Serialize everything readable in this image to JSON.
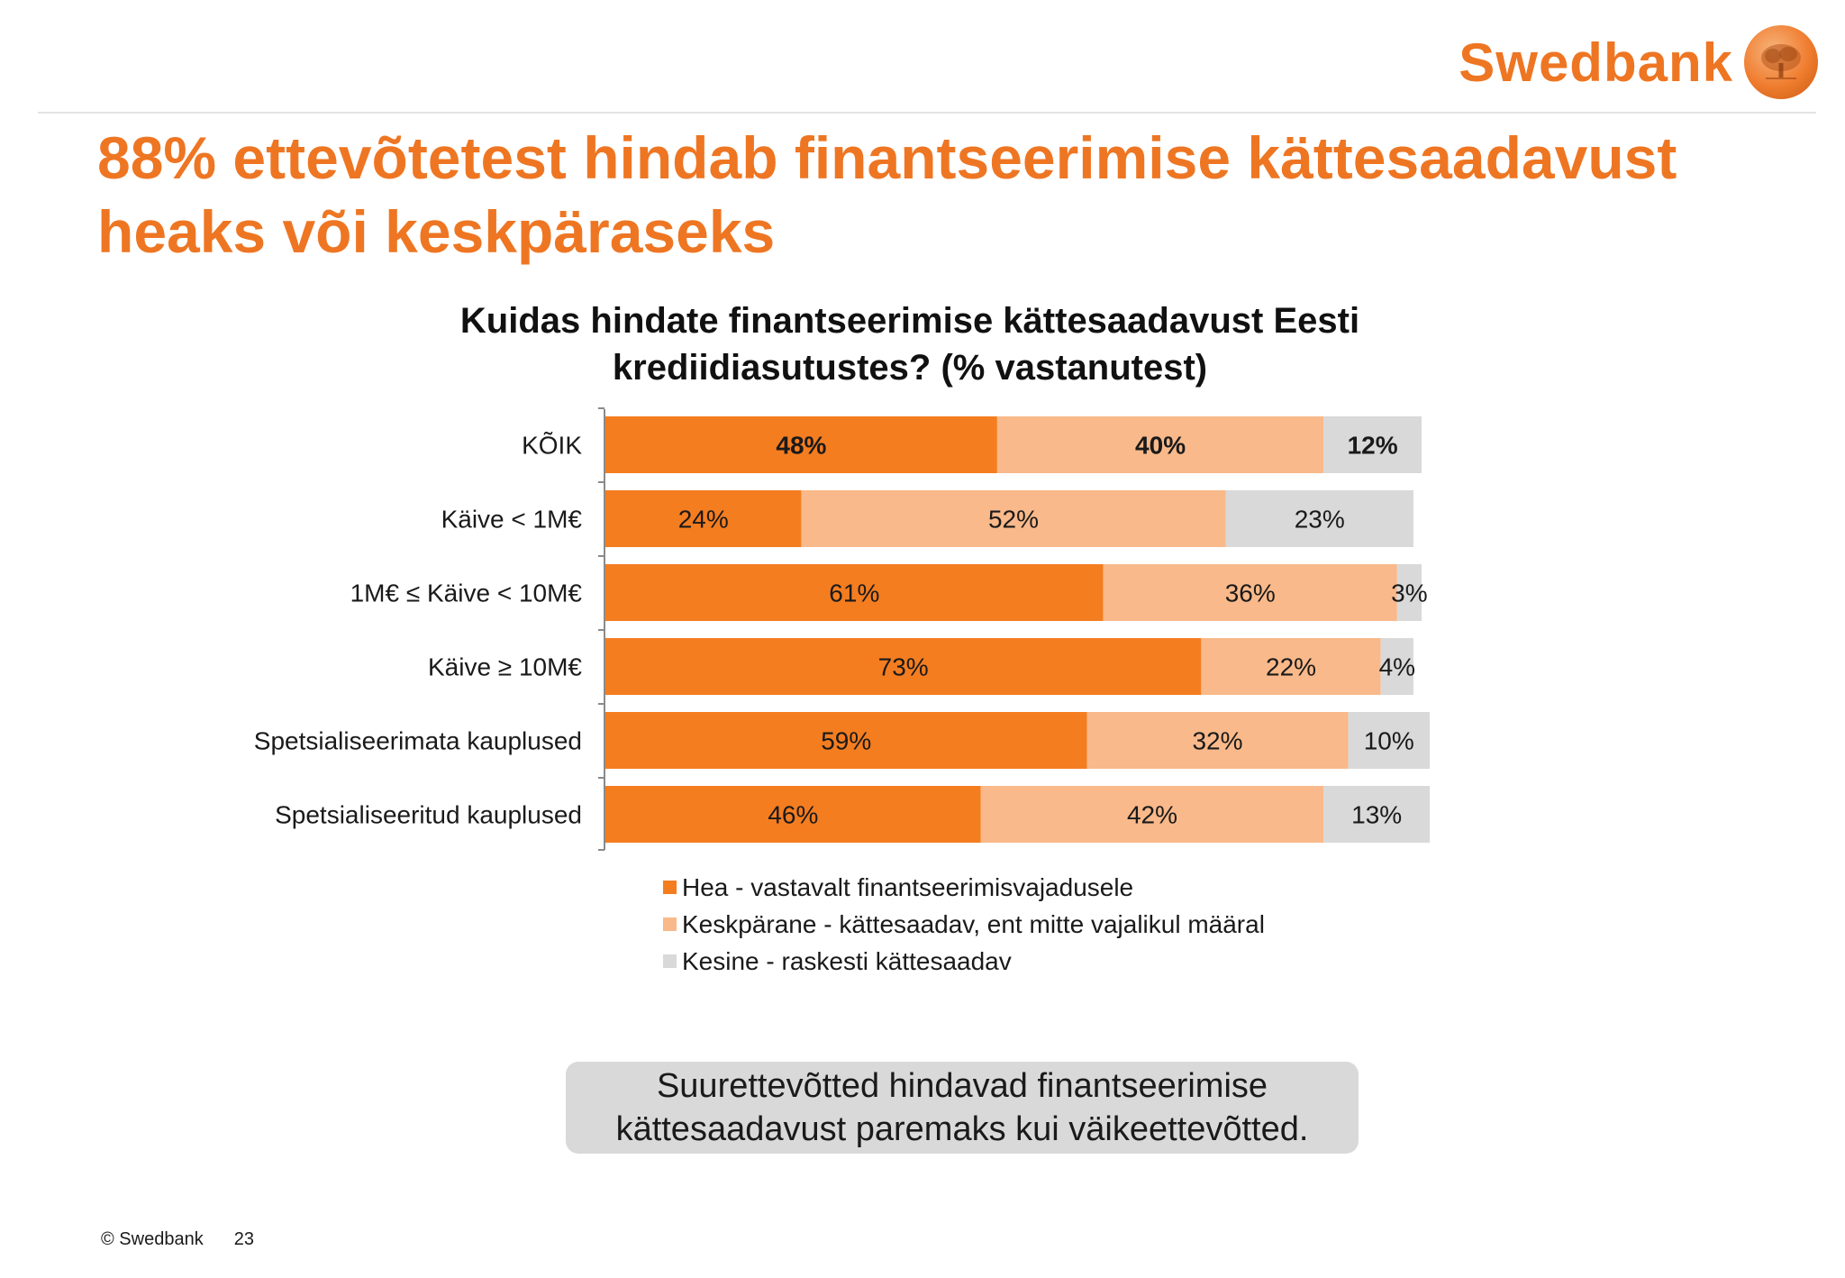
{
  "logo": {
    "text": "Swedbank"
  },
  "title": "88% ettevõtetest hindab finantseerimise kättesaadavust heaks või keskpäraseks",
  "colors": {
    "brand": "#ee7623",
    "hea": "#f47d20",
    "keskparane": "#f9b98a",
    "kesine": "#d9d9d9"
  },
  "chart_data": {
    "type": "bar",
    "orientation": "horizontal",
    "stacked": true,
    "title_lines": [
      "Kuidas hindate finantseerimise kättesaadavust Eesti",
      "krediidiasutustes? (% vastanutest)"
    ],
    "categories": [
      "KÕIK",
      "Käive < 1M€",
      "1M€ ≤ Käive < 10M€",
      "Käive ≥ 10M€",
      "Spetsialiseerimata kauplused",
      "Spetsialiseeritud kauplused"
    ],
    "series": [
      {
        "name": "Hea - vastavalt finantseerimisvajadusele",
        "color": "#f47d20",
        "values": [
          48,
          24,
          61,
          73,
          59,
          46
        ]
      },
      {
        "name": "Keskpärane - kättesaadav, ent mitte vajalikul määral",
        "color": "#f9b98a",
        "values": [
          40,
          52,
          36,
          22,
          32,
          42
        ]
      },
      {
        "name": "Kesine - raskesti kättesaadav",
        "color": "#d9d9d9",
        "values": [
          12,
          23,
          3,
          4,
          10,
          13
        ]
      }
    ],
    "labels": [
      [
        "48%",
        "40%",
        "12%"
      ],
      [
        "24%",
        "52%",
        "23%"
      ],
      [
        "61%",
        "36%",
        "3%"
      ],
      [
        "73%",
        "22%",
        "4%"
      ],
      [
        "59%",
        "32%",
        "10%"
      ],
      [
        "46%",
        "42%",
        "13%"
      ]
    ],
    "bold_rows": [
      0
    ],
    "xlim": [
      0,
      100
    ],
    "legend_position": "bottom"
  },
  "callout": {
    "line1": "Suurettevõtted hindavad finantseerimise",
    "line2": "kättesaadavust paremaks kui väikeettevõtted."
  },
  "footer": {
    "copyright": "© Swedbank",
    "page": "23"
  }
}
